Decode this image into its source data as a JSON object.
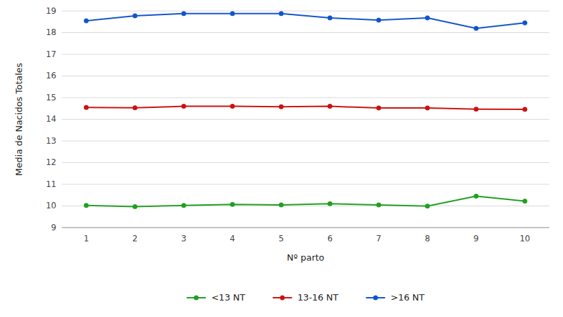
{
  "chart_data": {
    "type": "line",
    "x_label": "Nº parto",
    "y_label": "Media de Nacidos Totales",
    "x": [
      1,
      2,
      3,
      4,
      5,
      6,
      7,
      8,
      9,
      10
    ],
    "xlim": [
      0.5,
      10.5
    ],
    "xticks": [
      1,
      2,
      3,
      4,
      5,
      6,
      7,
      8,
      9,
      10
    ],
    "ylim": [
      9,
      19
    ],
    "yticks": [
      9,
      10,
      11,
      12,
      13,
      14,
      15,
      16,
      17,
      18,
      19
    ],
    "grid": true,
    "legend": "bottom",
    "marker": "circle",
    "series": [
      {
        "name": "<13 NT",
        "color": "#1fa01f",
        "values": [
          10.02,
          9.97,
          10.02,
          10.07,
          10.05,
          10.1,
          10.05,
          9.99,
          10.45,
          10.22
        ]
      },
      {
        "name": "13-16 NT",
        "color": "#cc1111",
        "values": [
          14.55,
          14.53,
          14.6,
          14.6,
          14.58,
          14.6,
          14.52,
          14.52,
          14.47,
          14.46
        ]
      },
      {
        "name": ">16 NT",
        "color": "#1155cc",
        "values": [
          18.55,
          18.78,
          18.88,
          18.88,
          18.88,
          18.68,
          18.58,
          18.68,
          18.2,
          18.45
        ]
      }
    ]
  }
}
